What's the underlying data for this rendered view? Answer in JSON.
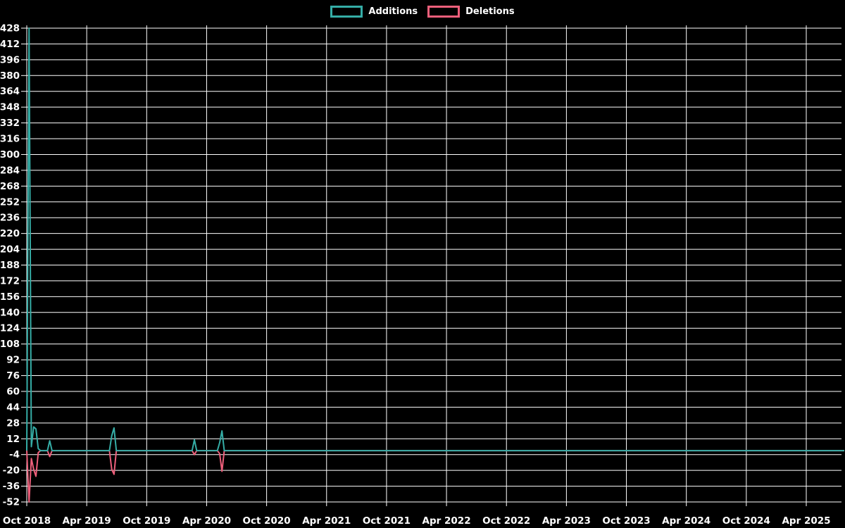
{
  "legend": {
    "items": [
      {
        "label": "Additions",
        "color": "#35ada6"
      },
      {
        "label": "Deletions",
        "color": "#ee5f7b"
      }
    ]
  },
  "colors": {
    "background": "#000000",
    "grid": "#ffffff",
    "text": "#ffffff",
    "additions": "#35ada6",
    "deletions": "#ee5f7b"
  },
  "chart_data": {
    "type": "line",
    "title": "",
    "xlabel": "",
    "ylabel": "",
    "grid": true,
    "legend_position": "top-center",
    "x_axis": {
      "unit": "week",
      "tick_interval": "6 months",
      "tick_labels": [
        "Oct 2018",
        "Apr 2019",
        "Oct 2019",
        "Apr 2020",
        "Oct 2020",
        "Apr 2021",
        "Oct 2021",
        "Apr 2022",
        "Oct 2022",
        "Apr 2023",
        "Oct 2023",
        "Apr 2024",
        "Oct 2024",
        "Apr 2025"
      ]
    },
    "y_axis": {
      "min": -52,
      "max": 428,
      "step": 16,
      "tick_labels": [
        "428",
        "412",
        "396",
        "380",
        "364",
        "348",
        "332",
        "316",
        "300",
        "284",
        "268",
        "252",
        "236",
        "220",
        "204",
        "188",
        "172",
        "156",
        "140",
        "124",
        "108",
        "92",
        "76",
        "60",
        "44",
        "28",
        "12",
        "-4",
        "-20",
        "-36",
        "-52"
      ]
    },
    "series": [
      {
        "name": "Additions",
        "color": "#35ada6",
        "baseline_value": 0,
        "points_week_value": [
          [
            1,
            428
          ],
          [
            2,
            4
          ],
          [
            3,
            24
          ],
          [
            4,
            22
          ],
          [
            5,
            2
          ],
          [
            10,
            10
          ],
          [
            37,
            15
          ],
          [
            38,
            23
          ],
          [
            73,
            11
          ],
          [
            84,
            8
          ],
          [
            85,
            20
          ]
        ]
      },
      {
        "name": "Deletions",
        "color": "#ee5f7b",
        "baseline_value": 0,
        "points_week_value": [
          [
            1,
            -52
          ],
          [
            2,
            -8
          ],
          [
            3,
            -19
          ],
          [
            4,
            -26
          ],
          [
            5,
            -2
          ],
          [
            10,
            -6
          ],
          [
            37,
            -19
          ],
          [
            38,
            -24
          ],
          [
            73,
            -4
          ],
          [
            84,
            -3
          ],
          [
            85,
            -21
          ]
        ]
      }
    ]
  }
}
